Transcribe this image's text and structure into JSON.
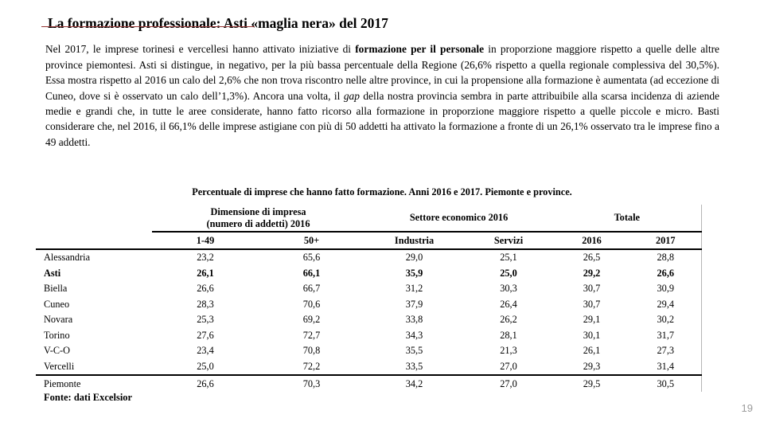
{
  "page": {
    "title": "La formazione professionale: Asti «maglia nera» del 2017",
    "page_number": "19",
    "accent_color": "#953634"
  },
  "paragraph": {
    "part1": "Nel 2017, le imprese torinesi e vercellesi hanno attivato iniziative di ",
    "part2_bold": "formazione per il personale",
    "part3": " in proporzione maggiore rispetto a quelle delle altre province piemontesi. Asti si distingue, in negativo, per la più bassa percentuale della Regione (26,6% rispetto a quella regionale complessiva del 30,5%). Essa mostra rispetto al 2016 un calo del 2,6% che non trova riscontro nelle altre province, in cui la propensione alla formazione è aumentata (ad eccezione di Cuneo, dove si è osservato un calo dell’1,3%). Ancora una volta, il ",
    "part4_italic": "gap",
    "part5": " della nostra provincia sembra in parte attribuibile alla scarsa incidenza di aziende medie e grandi che, in tutte le aree considerate, hanno fatto ricorso alla formazione in proporzione maggiore rispetto a quelle piccole e micro. Basti considerare che, nel 2016, il 66,1% delle imprese astigiane con più di 50 addetti ha attivato la formazione a fronte di un 26,1% osservato tra le imprese fino a 49 addetti."
  },
  "table": {
    "caption": "Percentuale di imprese che hanno fatto formazione. Anni 2016 e 2017. Piemonte e province.",
    "group1_line1": "Dimensione di impresa",
    "group1_line2": "(numero di addetti) 2016",
    "group2": "Settore economico 2016",
    "group3": "Totale",
    "subheaders": [
      "1-49",
      "50+",
      "Industria",
      "Servizi",
      "2016",
      "2017"
    ],
    "rows": [
      {
        "label": "Alessandria",
        "values": [
          "23,2",
          "65,6",
          "29,0",
          "25,1",
          "26,5",
          "28,8"
        ],
        "bold": false,
        "total": false
      },
      {
        "label": "Asti",
        "values": [
          "26,1",
          "66,1",
          "35,9",
          "25,0",
          "29,2",
          "26,6"
        ],
        "bold": true,
        "total": false
      },
      {
        "label": "Biella",
        "values": [
          "26,6",
          "66,7",
          "31,2",
          "30,3",
          "30,7",
          "30,9"
        ],
        "bold": false,
        "total": false
      },
      {
        "label": "Cuneo",
        "values": [
          "28,3",
          "70,6",
          "37,9",
          "26,4",
          "30,7",
          "29,4"
        ],
        "bold": false,
        "total": false
      },
      {
        "label": "Novara",
        "values": [
          "25,3",
          "69,2",
          "33,8",
          "26,2",
          "29,1",
          "30,2"
        ],
        "bold": false,
        "total": false
      },
      {
        "label": "Torino",
        "values": [
          "27,6",
          "72,7",
          "34,3",
          "28,1",
          "30,1",
          "31,7"
        ],
        "bold": false,
        "total": false
      },
      {
        "label": "V-C-O",
        "values": [
          "23,4",
          "70,8",
          "35,5",
          "21,3",
          "26,1",
          "27,3"
        ],
        "bold": false,
        "total": false
      },
      {
        "label": "Vercelli",
        "values": [
          "25,0",
          "72,2",
          "33,5",
          "27,0",
          "29,3",
          "31,4"
        ],
        "bold": false,
        "total": false
      },
      {
        "label": "Piemonte",
        "values": [
          "26,6",
          "70,3",
          "34,2",
          "27,0",
          "29,5",
          "30,5"
        ],
        "bold": false,
        "total": true
      }
    ]
  },
  "footer": {
    "source": "Fonte: dati Excelsior"
  }
}
